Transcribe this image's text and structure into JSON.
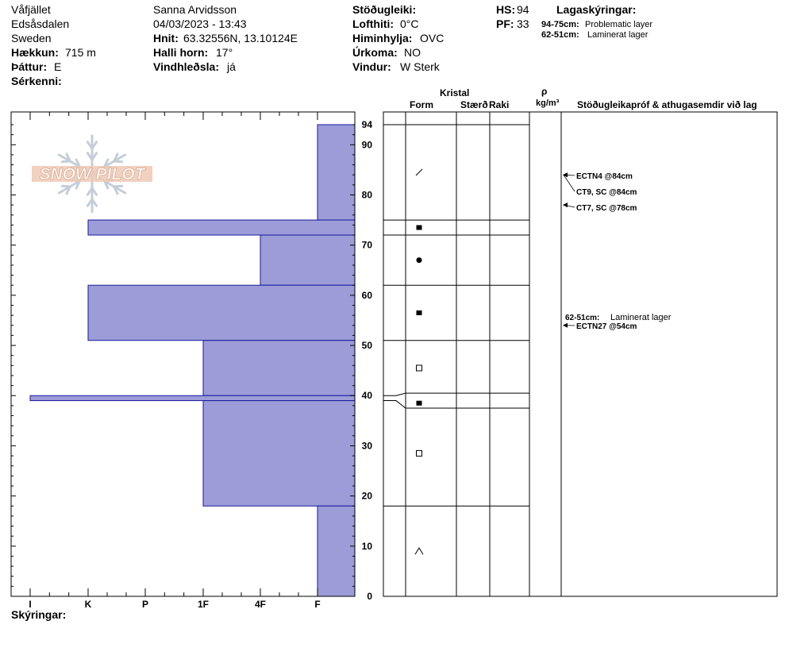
{
  "header": {
    "location_line1": "Våfjället",
    "location_line2": "Edsåsdalen",
    "location_line3": "Sweden",
    "elevation_label": "Hækkun:",
    "elevation_value": "715 m",
    "aspect_label": "Þáttur:",
    "aspect_value": "E",
    "features_label": "Sérkenni:",
    "observer": "Sanna Arvidsson",
    "datetime": "04/03/2023 - 13:43",
    "coords_label": "Hnit:",
    "coords_value": "63.32556N, 13.10124E",
    "slope_label": "Halli horn:",
    "slope_value": "17°",
    "wind_loading_label": "Vindhleðsla:",
    "wind_loading_value": "já",
    "stability_label": "Stöðugleiki:",
    "stability_value": "",
    "air_temp_label": "Lofthiti:",
    "air_temp_value": "0°C",
    "sky_label": "Himinhylja:",
    "sky_value": "OVC",
    "precip_label": "Úrkoma:",
    "precip_value": "NO",
    "wind_label": "Vindur:",
    "wind_value": "W Sterk",
    "hs_label": "HS:",
    "hs_value": "94",
    "pf_label": "PF:",
    "pf_value": "33",
    "layer_notes_label": "Lagaskýringar:",
    "layer_notes": [
      {
        "range": "94-75cm:",
        "text": "Problematic layer"
      },
      {
        "range": "62-51cm:",
        "text": "Laminerat lager"
      }
    ]
  },
  "columns": {
    "crystal": "Kristal",
    "form": "Form",
    "size": "Stærð",
    "moisture": "Raki",
    "rho": "ρ",
    "density_unit": "kg/m³",
    "tests": "Stöðugleikapróf & athugasemdir við lag"
  },
  "logo_text": "SNOW PILOT",
  "footer_label": "Skýringar:",
  "chart_data": {
    "type": "bar",
    "title": "",
    "ylabel": "",
    "ylim": [
      0,
      94
    ],
    "y_ticks": [
      0,
      10,
      20,
      30,
      40,
      50,
      60,
      70,
      80,
      90,
      94
    ],
    "hardness_scale": [
      "I",
      "K",
      "P",
      "1F",
      "4F",
      "F"
    ],
    "layers": [
      {
        "top": 94,
        "bottom": 75,
        "hardness": "F"
      },
      {
        "top": 75,
        "bottom": 72,
        "hardness": "K"
      },
      {
        "top": 72,
        "bottom": 62,
        "hardness": "4F"
      },
      {
        "top": 62,
        "bottom": 51,
        "hardness": "K"
      },
      {
        "top": 51,
        "bottom": 40,
        "hardness": "1F"
      },
      {
        "top": 40,
        "bottom": 39,
        "hardness": "I"
      },
      {
        "top": 39,
        "bottom": 18,
        "hardness": "1F"
      },
      {
        "top": 18,
        "bottom": 0,
        "hardness": "F"
      }
    ],
    "grain_forms": [
      {
        "depth": 84.5,
        "symbol": "slash"
      },
      {
        "depth": 73.5,
        "symbol": "filled-square"
      },
      {
        "depth": 67,
        "symbol": "filled-circle"
      },
      {
        "depth": 56.5,
        "symbol": "filled-square"
      },
      {
        "depth": 45.5,
        "symbol": "open-square"
      },
      {
        "depth": 38.5,
        "symbol": "filled-square"
      },
      {
        "depth": 28.5,
        "symbol": "open-square"
      },
      {
        "depth": 9,
        "symbol": "caret"
      }
    ],
    "tests": [
      {
        "text": "ECTN4 @84cm",
        "depth": 84
      },
      {
        "text": "CT9, SC @84cm",
        "depth": 84
      },
      {
        "text": "CT7, SC @78cm",
        "depth": 78
      },
      {
        "text": "ECTN27 @54cm",
        "depth": 54
      }
    ],
    "comment": {
      "range": "62-51cm:",
      "text": "Laminerat lager"
    }
  }
}
